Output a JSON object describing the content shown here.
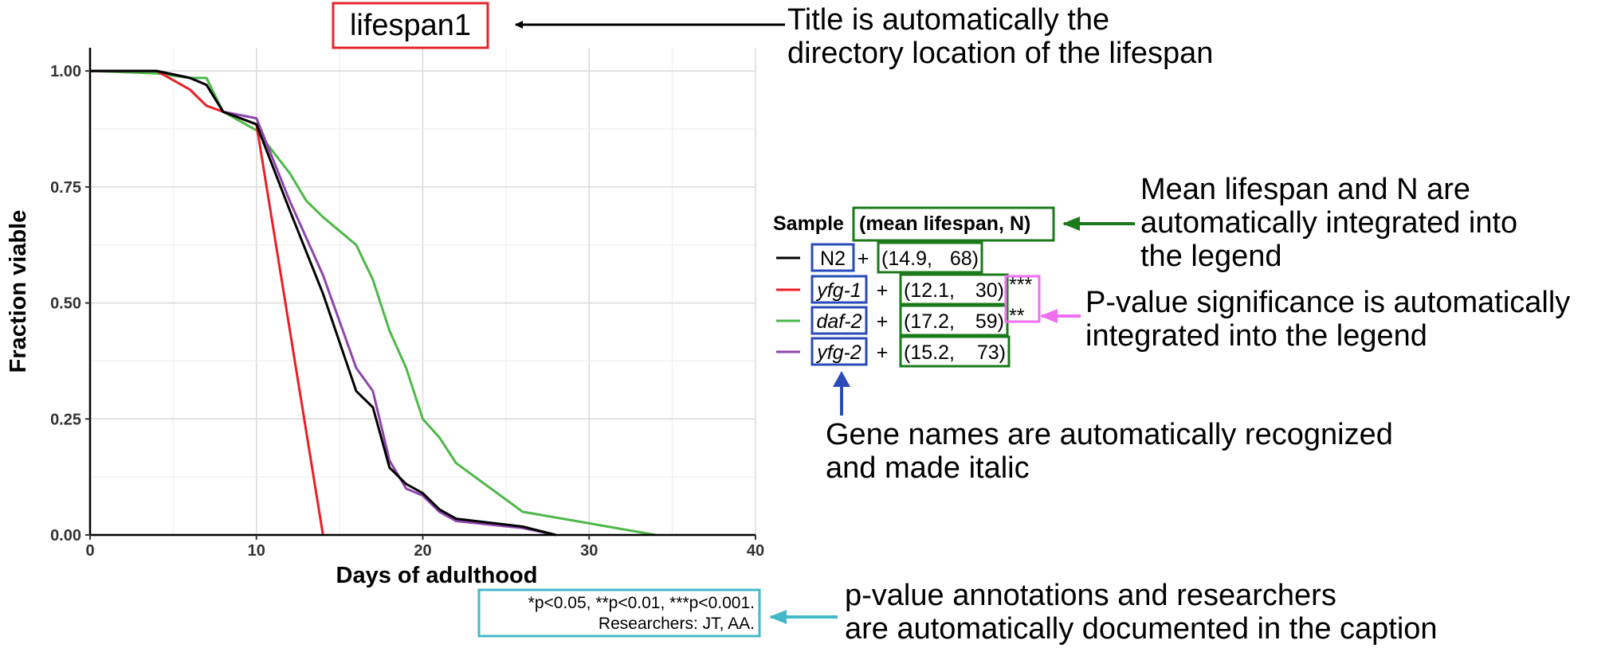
{
  "colors": {
    "N2": "#000000",
    "yfg1": "#ee1c25",
    "daf2": "#4db848",
    "yfg2": "#8e44ad",
    "title_box": "#e3242b",
    "legend_box_green": "#1a7a1a",
    "legend_box_blue": "#2a4bb8",
    "pvalue_box": "#f06ef0",
    "caption_box": "#45b8c8"
  },
  "chart_data": {
    "type": "line",
    "title": "lifespan1",
    "xlabel": "Days of adulthood",
    "ylabel": "Fraction viable",
    "xlim": [
      0,
      40
    ],
    "ylim": [
      0,
      1.05
    ],
    "x_ticks": [
      "0",
      "10",
      "20",
      "30",
      "40"
    ],
    "y_ticks": [
      "0.00",
      "0.25",
      "0.50",
      "0.75",
      "1.00"
    ],
    "grid": true,
    "legend_title_sample": "Sample",
    "legend_title_stats": "(mean lifespan, N)",
    "series": [
      {
        "name": "N2",
        "italic": false,
        "mean": "(14.9,",
        "n": "68)",
        "sig": "",
        "color_key": "N2",
        "points": [
          [
            0,
            1.0
          ],
          [
            4,
            1.0
          ],
          [
            6,
            0.985
          ],
          [
            7,
            0.97
          ],
          [
            8,
            0.912
          ],
          [
            10,
            0.885
          ],
          [
            12,
            0.7
          ],
          [
            14,
            0.52
          ],
          [
            16,
            0.31
          ],
          [
            17,
            0.275
          ],
          [
            18,
            0.145
          ],
          [
            19,
            0.11
          ],
          [
            20,
            0.09
          ],
          [
            21,
            0.055
          ],
          [
            22,
            0.035
          ],
          [
            26,
            0.018
          ],
          [
            28,
            0.0
          ]
        ]
      },
      {
        "name": "yfg-1",
        "italic": true,
        "mean": "(12.1,",
        "n": "30)",
        "sig": "***",
        "color_key": "yfg1",
        "points": [
          [
            0,
            1.0
          ],
          [
            4,
            1.0
          ],
          [
            6,
            0.96
          ],
          [
            7,
            0.925
          ],
          [
            8,
            0.912
          ],
          [
            10,
            0.885
          ],
          [
            14,
            0.0
          ]
        ]
      },
      {
        "name": "daf-2",
        "italic": true,
        "mean": "(17.2,",
        "n": "59)",
        "sig": "**",
        "color_key": "daf2",
        "points": [
          [
            0,
            1.0
          ],
          [
            4,
            0.995
          ],
          [
            6,
            0.985
          ],
          [
            7,
            0.985
          ],
          [
            8,
            0.912
          ],
          [
            10,
            0.872
          ],
          [
            12,
            0.78
          ],
          [
            13,
            0.72
          ],
          [
            14,
            0.685
          ],
          [
            16,
            0.625
          ],
          [
            17,
            0.55
          ],
          [
            18,
            0.44
          ],
          [
            19,
            0.36
          ],
          [
            20,
            0.25
          ],
          [
            21,
            0.21
          ],
          [
            22,
            0.155
          ],
          [
            26,
            0.05
          ],
          [
            30,
            0.025
          ],
          [
            34,
            0.0
          ]
        ]
      },
      {
        "name": "yfg-2",
        "italic": true,
        "mean": "(15.2,",
        "n": "73)",
        "sig": "",
        "color_key": "yfg2",
        "points": [
          [
            0,
            1.0
          ],
          [
            4,
            1.0
          ],
          [
            6,
            0.985
          ],
          [
            7,
            0.97
          ],
          [
            8,
            0.912
          ],
          [
            10,
            0.898
          ],
          [
            12,
            0.72
          ],
          [
            14,
            0.56
          ],
          [
            16,
            0.36
          ],
          [
            17,
            0.31
          ],
          [
            18,
            0.16
          ],
          [
            19,
            0.1
          ],
          [
            20,
            0.085
          ],
          [
            21,
            0.05
          ],
          [
            22,
            0.03
          ],
          [
            26,
            0.015
          ],
          [
            28,
            0.0
          ]
        ]
      }
    ]
  },
  "caption": {
    "line1": "*p<0.05, **p<0.01, ***p<0.001.",
    "line2": "Researchers: JT, AA."
  },
  "annotations": {
    "title_note": [
      "Title is automatically the",
      "directory location of the lifespan"
    ],
    "legend_note": [
      "Mean lifespan and N are",
      "automatically integrated into",
      "the legend"
    ],
    "pvalue_note": [
      "P-value significance is automatically",
      "integrated into the legend"
    ],
    "gene_note": [
      "Gene names are automatically recognized",
      "and made italic"
    ],
    "caption_note": [
      "p-value annotations and researchers",
      "are automatically documented in the caption"
    ]
  }
}
